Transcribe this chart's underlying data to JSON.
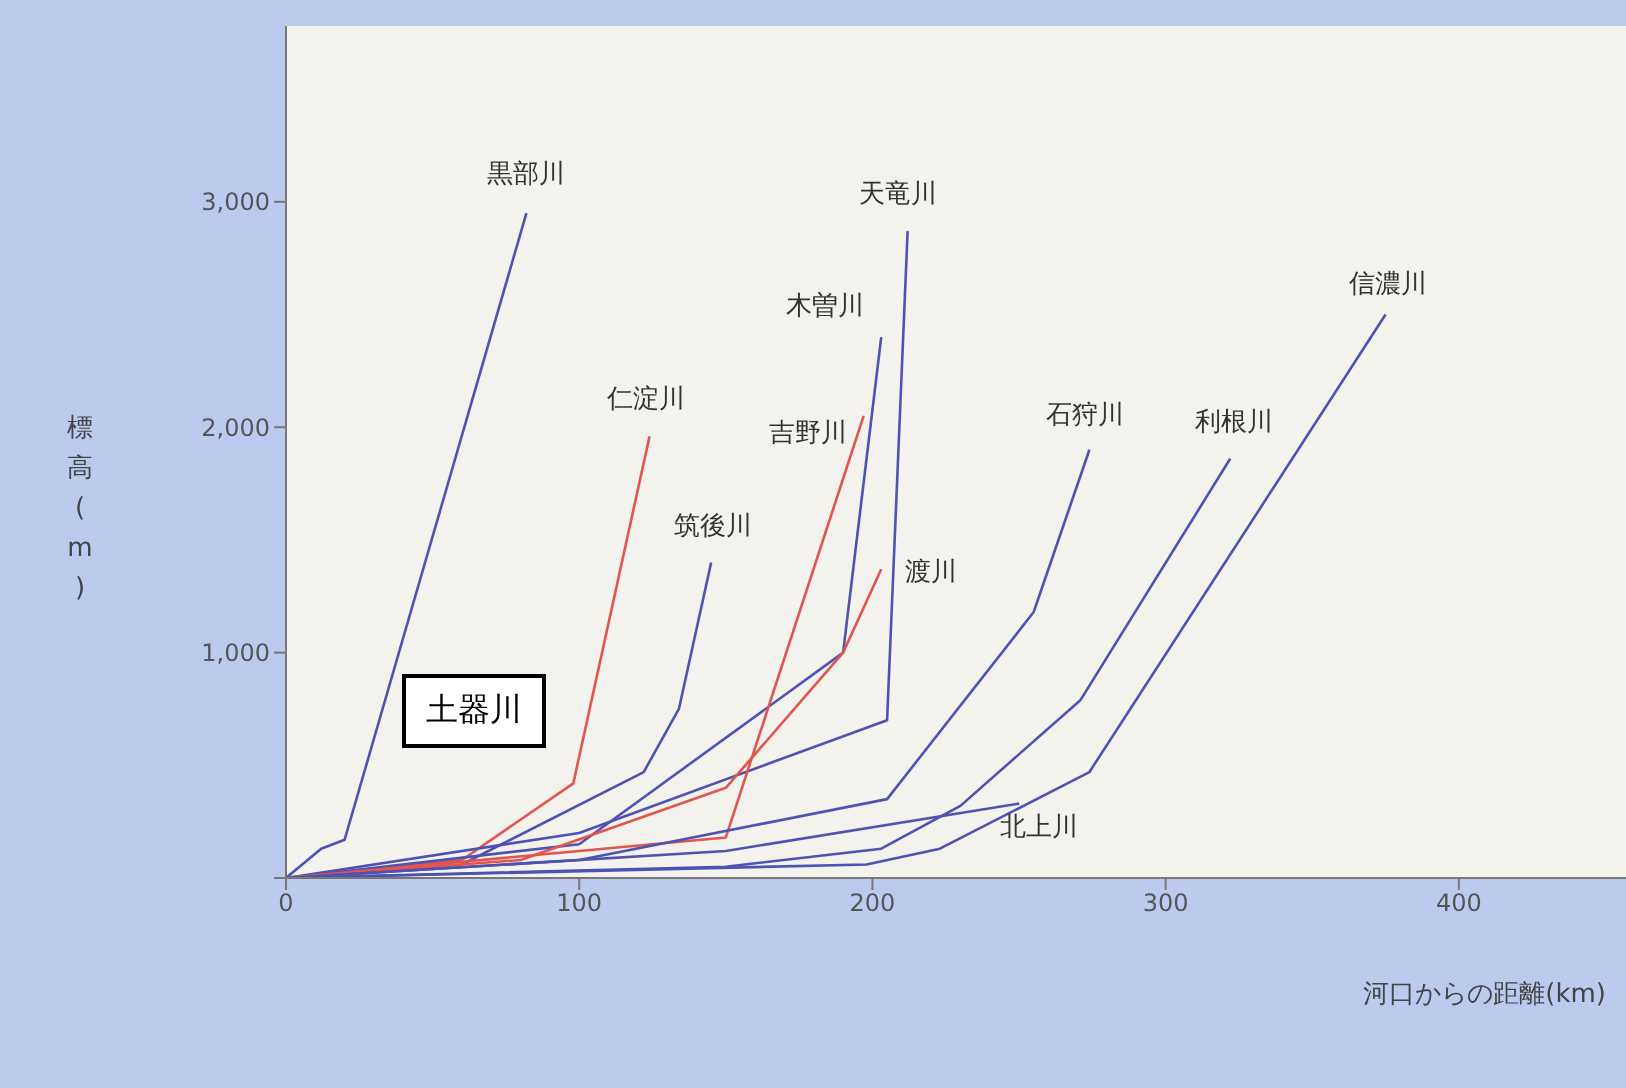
{
  "chart_data": {
    "type": "line",
    "xlabel": "河口からの距離(km)",
    "ylabel": "標高(m)",
    "xlim": [
      0,
      457
    ],
    "xticks": [
      0,
      100,
      200,
      300,
      400
    ],
    "ylim": [
      0,
      3780
    ],
    "yticks": [
      {
        "value": 0,
        "label": null
      },
      {
        "value": 1000,
        "label": "1,000"
      },
      {
        "value": 2000,
        "label": "2,000"
      },
      {
        "value": 3000,
        "label": "3,000"
      }
    ],
    "marker": "none",
    "line_style": "solid",
    "annotations": [
      "土器川"
    ],
    "series": [
      {
        "name": "黒部川",
        "color": "#4e52b3",
        "x": [
          0,
          12,
          20,
          82
        ],
        "values": [
          0,
          130,
          170,
          2950
        ]
      },
      {
        "name": "仁淀川",
        "color": "#e2554e",
        "x": [
          0,
          60,
          98,
          124
        ],
        "values": [
          0,
          80,
          420,
          1960
        ]
      },
      {
        "name": "筑後川",
        "color": "#4e52b3",
        "x": [
          0,
          60,
          122,
          134,
          145
        ],
        "values": [
          0,
          60,
          470,
          750,
          1400
        ]
      },
      {
        "name": "木曽川",
        "color": "#4e52b3",
        "x": [
          0,
          100,
          190,
          203
        ],
        "values": [
          0,
          150,
          1000,
          2400
        ]
      },
      {
        "name": "天竜川",
        "color": "#4e52b3",
        "x": [
          0,
          100,
          205,
          212
        ],
        "values": [
          0,
          200,
          700,
          2870
        ]
      },
      {
        "name": "吉野川",
        "color": "#e2554e",
        "x": [
          0,
          100,
          150,
          197
        ],
        "values": [
          0,
          120,
          180,
          2050
        ]
      },
      {
        "name": "渡川",
        "color": "#e2554e",
        "x": [
          0,
          80,
          150,
          190,
          203
        ],
        "values": [
          0,
          80,
          400,
          1000,
          1370
        ]
      },
      {
        "name": "石狩川",
        "color": "#4e52b3",
        "x": [
          0,
          100,
          205,
          255,
          274
        ],
        "values": [
          0,
          80,
          350,
          1180,
          1900
        ]
      },
      {
        "name": "利根川",
        "color": "#4e52b3",
        "x": [
          0,
          150,
          203,
          230,
          271,
          322
        ],
        "values": [
          0,
          50,
          130,
          320,
          790,
          1860
        ]
      },
      {
        "name": "信濃川",
        "color": "#4e52b3",
        "x": [
          0,
          198,
          223,
          274,
          375
        ],
        "values": [
          0,
          60,
          130,
          470,
          2500
        ]
      },
      {
        "name": "北上川",
        "color": "#4e52b3",
        "x": [
          0,
          150,
          250
        ],
        "values": [
          0,
          120,
          330
        ]
      }
    ]
  }
}
